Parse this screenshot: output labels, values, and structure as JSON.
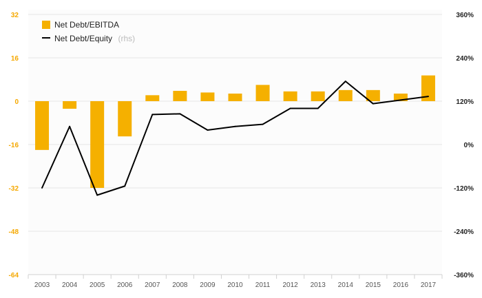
{
  "chart_data": {
    "type": "bar",
    "categories": [
      "2003",
      "2004",
      "2005",
      "2006",
      "2007",
      "2008",
      "2009",
      "2010",
      "2011",
      "2012",
      "2013",
      "2014",
      "2015",
      "2016",
      "2017"
    ],
    "series": [
      {
        "name": "Net Debt/EBITDA",
        "type": "bar",
        "axis": "left",
        "color": "#f5b000",
        "values": [
          -18,
          -2.8,
          -32,
          -13,
          2.2,
          3.8,
          3.2,
          2.8,
          6,
          3.6,
          3.6,
          4.1,
          4.1,
          2.8,
          9.5
        ]
      },
      {
        "name": "Net Debt/Equity",
        "note": "(rhs)",
        "type": "line",
        "axis": "right",
        "color": "#000000",
        "values": [
          -120,
          50,
          -140,
          -115,
          83,
          85,
          40,
          50,
          56,
          100,
          100,
          175,
          113,
          123,
          133
        ]
      }
    ],
    "y_left": {
      "min": -64,
      "max": 32,
      "ticks": [
        "32",
        "16",
        "0",
        "-16",
        "-32",
        "-48",
        "-64"
      ],
      "tick_values": [
        32,
        16,
        0,
        -16,
        -32,
        -48,
        -64
      ]
    },
    "y_right": {
      "min": -360,
      "max": 360,
      "ticks": [
        "360%",
        "240%",
        "120%",
        "0%",
        "-120%",
        "-240%",
        "-360%"
      ],
      "tick_values": [
        360,
        240,
        120,
        0,
        -120,
        -240,
        -360
      ]
    },
    "legend_position": "top-left",
    "grid": true
  }
}
